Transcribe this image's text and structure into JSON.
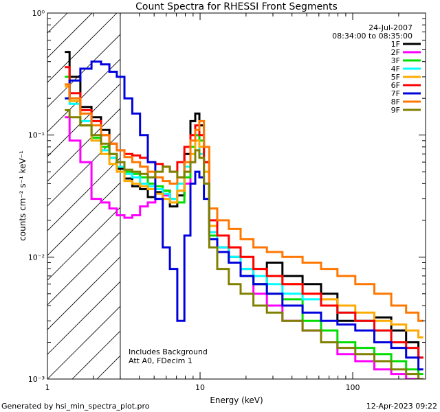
{
  "chart_data": {
    "type": "line",
    "title": "Count Spectra for RHESSI Front Segments",
    "xlabel": "Energy (keV)",
    "ylabel": "counts cm⁻² s⁻¹ keV⁻¹",
    "xscale": "log",
    "yscale": "log",
    "xlim": [
      1,
      300
    ],
    "ylim": [
      0.001,
      1
    ],
    "x_ticks": [
      {
        "value": 1,
        "label": "1"
      },
      {
        "value": 10,
        "label": "10"
      },
      {
        "value": 100,
        "label": "100"
      }
    ],
    "y_ticks": [
      {
        "value": 1,
        "label": "10⁰"
      },
      {
        "value": 0.1,
        "label": "10⁻¹"
      },
      {
        "value": 0.01,
        "label": "10⁻²"
      },
      {
        "value": 0.001,
        "label": "10⁻³"
      }
    ],
    "date_label": "24-Jul-2007",
    "time_range_label": "08:34:00 to 08:35:00",
    "annotations": [
      "Includes Background",
      "Att A0, FDecim 1"
    ],
    "shaded_region_xmax": 3,
    "series": [
      {
        "name": "1F",
        "color": "#000000",
        "x": [
          1.3,
          1.5,
          1.8,
          2.1,
          2.4,
          2.7,
          3.0,
          3.4,
          3.8,
          4.3,
          4.8,
          5.4,
          6.0,
          6.7,
          7.5,
          8.3,
          9.0,
          9.6,
          10.2,
          11,
          12,
          14,
          17,
          20,
          25,
          30,
          40,
          55,
          70,
          90,
          120,
          160,
          200,
          250,
          290
        ],
        "values": [
          0.48,
          0.3,
          0.17,
          0.14,
          0.11,
          0.065,
          0.053,
          0.044,
          0.038,
          0.036,
          0.031,
          0.034,
          0.035,
          0.026,
          0.032,
          0.07,
          0.13,
          0.15,
          0.12,
          0.06,
          0.018,
          0.012,
          0.01,
          0.008,
          0.006,
          0.009,
          0.007,
          0.006,
          0.005,
          0.003,
          0.003,
          0.0032,
          0.0025,
          0.002,
          0.0015
        ]
      },
      {
        "name": "2F",
        "color": "#ff00ff",
        "x": [
          1.3,
          1.5,
          1.8,
          2.1,
          2.4,
          2.7,
          3.0,
          3.4,
          3.8,
          4.3,
          4.8,
          5.4,
          6.0,
          6.7,
          7.5,
          8.3,
          9.0,
          9.6,
          10.2,
          11,
          12,
          14,
          17,
          20,
          25,
          30,
          40,
          55,
          70,
          90,
          120,
          160,
          200,
          250,
          290
        ],
        "values": [
          0.14,
          0.09,
          0.06,
          0.03,
          0.028,
          0.025,
          0.022,
          0.021,
          0.022,
          0.026,
          0.028,
          0.03,
          0.032,
          0.03,
          0.035,
          0.04,
          0.06,
          0.1,
          0.08,
          0.04,
          0.016,
          0.012,
          0.009,
          0.007,
          0.005,
          0.004,
          0.003,
          0.0025,
          0.002,
          0.0016,
          0.0014,
          0.0012,
          0.0011,
          0.001,
          0.001
        ]
      },
      {
        "name": "3F",
        "color": "#00dd00",
        "x": [
          1.3,
          1.5,
          1.8,
          2.1,
          2.4,
          2.7,
          3.0,
          3.4,
          3.8,
          4.3,
          4.8,
          5.4,
          6.0,
          6.7,
          7.5,
          8.3,
          9.0,
          9.6,
          10.2,
          11,
          12,
          14,
          17,
          20,
          25,
          30,
          40,
          55,
          70,
          90,
          120,
          160,
          200,
          250,
          290
        ],
        "values": [
          0.3,
          0.2,
          0.12,
          0.095,
          0.08,
          0.07,
          0.06,
          0.05,
          0.048,
          0.045,
          0.04,
          0.038,
          0.035,
          0.03,
          0.028,
          0.045,
          0.08,
          0.1,
          0.09,
          0.05,
          0.015,
          0.011,
          0.009,
          0.007,
          0.006,
          0.005,
          0.0045,
          0.003,
          0.0025,
          0.002,
          0.0018,
          0.0016,
          0.0014,
          0.0012,
          0.0011
        ]
      },
      {
        "name": "4F",
        "color": "#00ffff",
        "x": [
          1.3,
          1.5,
          1.8,
          2.1,
          2.4,
          2.7,
          3.0,
          3.4,
          3.8,
          4.3,
          4.8,
          5.4,
          6.0,
          6.7,
          7.5,
          8.3,
          9.0,
          9.6,
          10.2,
          11,
          12,
          14,
          17,
          20,
          25,
          30,
          40,
          55,
          70,
          90,
          120,
          160,
          200,
          250,
          290
        ],
        "values": [
          0.2,
          0.18,
          0.13,
          0.09,
          0.075,
          0.065,
          0.055,
          0.048,
          0.045,
          0.04,
          0.038,
          0.036,
          0.033,
          0.03,
          0.04,
          0.055,
          0.07,
          0.09,
          0.07,
          0.04,
          0.016,
          0.012,
          0.01,
          0.008,
          0.007,
          0.006,
          0.005,
          0.0045,
          0.004,
          0.0035,
          0.003,
          0.0025,
          0.002,
          0.0018,
          0.0015
        ]
      },
      {
        "name": "5F",
        "color": "#ffaa00",
        "x": [
          1.3,
          1.5,
          1.8,
          2.1,
          2.4,
          2.7,
          3.0,
          3.4,
          3.8,
          4.3,
          4.8,
          5.4,
          6.0,
          6.7,
          7.5,
          8.3,
          9.0,
          9.6,
          10.2,
          11,
          12,
          14,
          17,
          20,
          25,
          30,
          40,
          55,
          70,
          90,
          120,
          160,
          200,
          250,
          290
        ],
        "values": [
          0.25,
          0.19,
          0.12,
          0.09,
          0.07,
          0.058,
          0.05,
          0.042,
          0.04,
          0.038,
          0.036,
          0.033,
          0.03,
          0.028,
          0.035,
          0.05,
          0.07,
          0.09,
          0.08,
          0.05,
          0.018,
          0.015,
          0.012,
          0.01,
          0.008,
          0.007,
          0.006,
          0.005,
          0.0045,
          0.004,
          0.0035,
          0.003,
          0.0028,
          0.0025,
          0.0022
        ]
      },
      {
        "name": "6F",
        "color": "#ff0000",
        "x": [
          1.3,
          1.5,
          1.8,
          2.1,
          2.4,
          2.7,
          3.0,
          3.4,
          3.8,
          4.3,
          4.8,
          5.4,
          6.0,
          6.7,
          7.5,
          8.3,
          9.0,
          9.6,
          10.2,
          11,
          12,
          14,
          17,
          20,
          25,
          30,
          40,
          55,
          70,
          90,
          120,
          160,
          200,
          250,
          290
        ],
        "values": [
          0.36,
          0.22,
          0.16,
          0.13,
          0.1,
          0.085,
          0.075,
          0.07,
          0.068,
          0.065,
          0.06,
          0.058,
          0.055,
          0.05,
          0.06,
          0.08,
          0.1,
          0.12,
          0.1,
          0.06,
          0.02,
          0.015,
          0.012,
          0.01,
          0.008,
          0.007,
          0.006,
          0.005,
          0.004,
          0.0035,
          0.003,
          0.0025,
          0.002,
          0.0018,
          0.0015
        ]
      },
      {
        "name": "7F",
        "color": "#0000dd",
        "x": [
          1.3,
          1.5,
          1.8,
          2.1,
          2.4,
          2.7,
          3.0,
          3.4,
          3.8,
          4.3,
          4.8,
          5.4,
          6.0,
          6.7,
          7.5,
          8.3,
          9.0,
          9.6,
          10.2,
          11,
          12,
          14,
          17,
          20,
          25,
          30,
          40,
          55,
          70,
          90,
          120,
          160,
          200,
          250,
          290
        ],
        "values": [
          0.2,
          0.28,
          0.35,
          0.4,
          0.38,
          0.33,
          0.3,
          0.2,
          0.15,
          0.1,
          0.06,
          0.03,
          0.012,
          0.008,
          0.003,
          0.015,
          0.04,
          0.05,
          0.045,
          0.03,
          0.014,
          0.011,
          0.009,
          0.007,
          0.006,
          0.005,
          0.004,
          0.0035,
          0.003,
          0.0028,
          0.0025,
          0.002,
          0.0018,
          0.0015,
          0.0012
        ]
      },
      {
        "name": "8F",
        "color": "#ff7700",
        "x": [
          1.3,
          1.5,
          1.8,
          2.1,
          2.4,
          2.7,
          3.0,
          3.4,
          3.8,
          4.3,
          4.8,
          5.4,
          6.0,
          6.7,
          7.5,
          8.3,
          9.0,
          9.6,
          10.2,
          11,
          12,
          14,
          17,
          20,
          25,
          30,
          40,
          55,
          70,
          90,
          120,
          160,
          200,
          250,
          290
        ],
        "values": [
          0.26,
          0.2,
          0.15,
          0.12,
          0.1,
          0.085,
          0.075,
          0.066,
          0.06,
          0.055,
          0.05,
          0.045,
          0.042,
          0.04,
          0.045,
          0.06,
          0.09,
          0.11,
          0.13,
          0.08,
          0.025,
          0.02,
          0.017,
          0.014,
          0.012,
          0.011,
          0.01,
          0.009,
          0.008,
          0.007,
          0.006,
          0.005,
          0.004,
          0.0035,
          0.003
        ]
      },
      {
        "name": "9F",
        "color": "#808000",
        "x": [
          1.3,
          1.5,
          1.8,
          2.1,
          2.4,
          2.7,
          3.0,
          3.4,
          3.8,
          4.3,
          4.8,
          5.4,
          6.0,
          6.7,
          7.5,
          8.3,
          9.0,
          9.6,
          10.2,
          11,
          12,
          14,
          17,
          20,
          25,
          30,
          40,
          55,
          70,
          90,
          120,
          160,
          200,
          250,
          290
        ],
        "values": [
          0.16,
          0.14,
          0.12,
          0.1,
          0.085,
          0.07,
          0.06,
          0.052,
          0.05,
          0.048,
          0.045,
          0.05,
          0.055,
          0.05,
          0.045,
          0.05,
          0.06,
          0.075,
          0.065,
          0.04,
          0.012,
          0.008,
          0.006,
          0.005,
          0.004,
          0.0035,
          0.003,
          0.0025,
          0.002,
          0.0018,
          0.0016,
          0.0014,
          0.0012,
          0.0011,
          0.001
        ]
      }
    ]
  },
  "footer": {
    "generated_by": "Generated by hsi_min_spectra_plot.pro",
    "date": "12-Apr-2023 09:22"
  }
}
